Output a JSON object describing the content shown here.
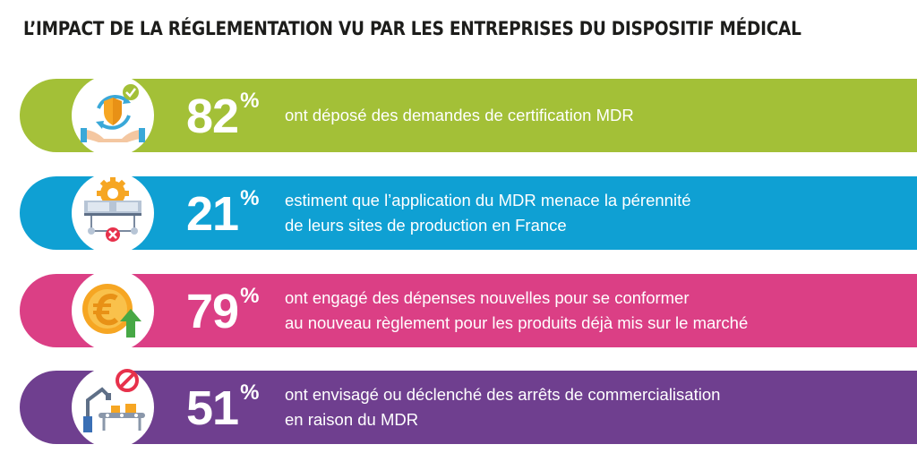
{
  "title": "L’IMPACT DE LA RÉGLEMENTATION VU PAR LES ENTREPRISES DU DISPOSITIF MÉDICAL",
  "rows": [
    {
      "color": "#a3c037",
      "icon": "shield-refresh-hands-icon",
      "value": "82",
      "sign": "%",
      "lines": [
        "ont déposé des demandes de certification MDR"
      ]
    },
    {
      "color": "#0fa0d3",
      "icon": "factory-gear-cancel-icon",
      "value": "21",
      "sign": "%",
      "lines": [
        "estiment que l’application du MDR menace la pérennité",
        "de leurs sites de production en France"
      ]
    },
    {
      "color": "#db3f85",
      "icon": "euro-coin-up-arrow-icon",
      "value": "79",
      "sign": "%",
      "lines": [
        "ont engagé des dépenses nouvelles pour se conformer",
        "au nouveau règlement pour les produits déjà mis sur le marché"
      ]
    },
    {
      "color": "#6f3f8f",
      "icon": "conveyor-prohibited-icon",
      "value": "51",
      "sign": "%",
      "lines": [
        "ont envisagé ou déclenché des arrêts de commercialisation",
        "en raison du MDR"
      ]
    }
  ]
}
